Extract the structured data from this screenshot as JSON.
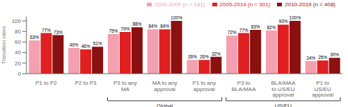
{
  "chart_data": {
    "type": "bar",
    "categories": [
      "P1 to P2",
      "P2 to P3",
      "P3 to any\nMA",
      "MA to any\napproval",
      "P1 to any\napproval",
      "P3 to\nBLA/MAA",
      "BLA/MAA\nto US/EU\napproval",
      "P1 to\nUS/EU\napproval"
    ],
    "series": [
      {
        "name": "2000-2009 (n = 181)",
        "color": "#F4A0B0",
        "values": [
          63,
          49,
          75,
          84,
          26,
          72,
          82,
          24
        ],
        "value_labels": [
          "63%",
          "49%",
          "75%",
          "84%",
          "26%",
          "72%",
          "82%",
          "24%"
        ]
      },
      {
        "name": "2005-2014 (n = 301)",
        "color": "#E02020",
        "values": [
          77,
          46,
          79,
          84,
          26,
          77,
          93,
          25
        ],
        "value_labels": [
          "77%",
          "46%",
          "79%",
          "84%",
          "26%",
          "77%",
          "93%",
          "25%"
        ]
      },
      {
        "name": "2010-2019 (n = 408)",
        "color": "#8B1010",
        "values": [
          73,
          51,
          88,
          100,
          32,
          83,
          100,
          30
        ],
        "value_labels": [
          "73%",
          "51%",
          "88%",
          "100%",
          "32%",
          "83%",
          "100%",
          "30%"
        ]
      }
    ],
    "ylabel": "Transition rates",
    "ylim": [
      0,
      108
    ],
    "yticks": [
      0,
      20,
      40,
      60,
      80,
      100
    ],
    "grid": false,
    "legend": "top",
    "data_labels": true,
    "annotations": [
      {
        "text": "Global",
        "categories": [
          "P3 to any\nMA",
          "P1 to any\napproval"
        ]
      },
      {
        "text": "US/EU",
        "categories": [
          "P3 to\nBLA/MAA",
          "P1 to\nUS/EU\napproval"
        ]
      }
    ]
  }
}
